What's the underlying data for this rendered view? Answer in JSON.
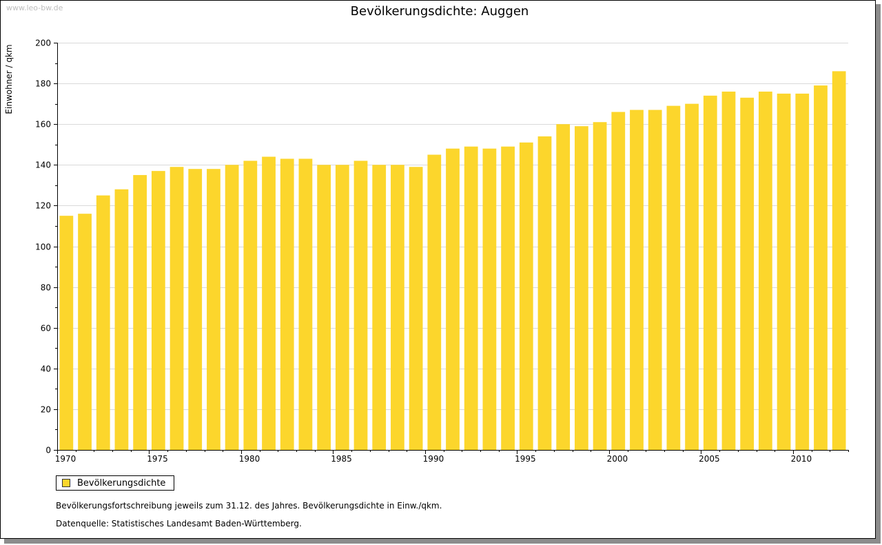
{
  "watermark": "www.leo-bw.de",
  "chart_data": {
    "type": "bar",
    "title": "Bevölkerungsdichte: Auggen",
    "xlabel": "",
    "ylabel": "Einwohner / qkm",
    "ylim": [
      0,
      200
    ],
    "yticks": [
      0,
      20,
      40,
      60,
      80,
      100,
      120,
      140,
      160,
      180,
      200
    ],
    "xtick_labels": [
      "1970",
      "1975",
      "1980",
      "1985",
      "1990",
      "1995",
      "2000",
      "2005",
      "2010"
    ],
    "grid": true,
    "legend_position": "bottom-left",
    "series": [
      {
        "name": "Bevölkerungsdichte",
        "color": "#fcd62c",
        "categories": [
          1970,
          1971,
          1972,
          1973,
          1974,
          1975,
          1976,
          1977,
          1978,
          1979,
          1980,
          1981,
          1982,
          1983,
          1984,
          1985,
          1986,
          1987,
          1988,
          1989,
          1990,
          1991,
          1992,
          1993,
          1994,
          1995,
          1996,
          1997,
          1998,
          1999,
          2000,
          2001,
          2002,
          2003,
          2004,
          2005,
          2006,
          2007,
          2008,
          2009,
          2010,
          2011,
          2012
        ],
        "values": [
          115,
          116,
          125,
          128,
          135,
          137,
          139,
          138,
          138,
          140,
          142,
          144,
          143,
          143,
          140,
          140,
          142,
          140,
          140,
          139,
          145,
          148,
          149,
          148,
          149,
          151,
          154,
          160,
          159,
          161,
          166,
          167,
          167,
          169,
          170,
          174,
          176,
          173,
          176,
          175,
          175,
          179,
          186
        ]
      }
    ]
  },
  "legend": {
    "label": "Bevölkerungsdichte"
  },
  "notes": [
    "Bevölkerungsfortschreibung jeweils zum 31.12. des Jahres. Bevölkerungsdichte in Einw./qkm.",
    "Datenquelle: Statistisches Landesamt Baden-Württemberg."
  ]
}
